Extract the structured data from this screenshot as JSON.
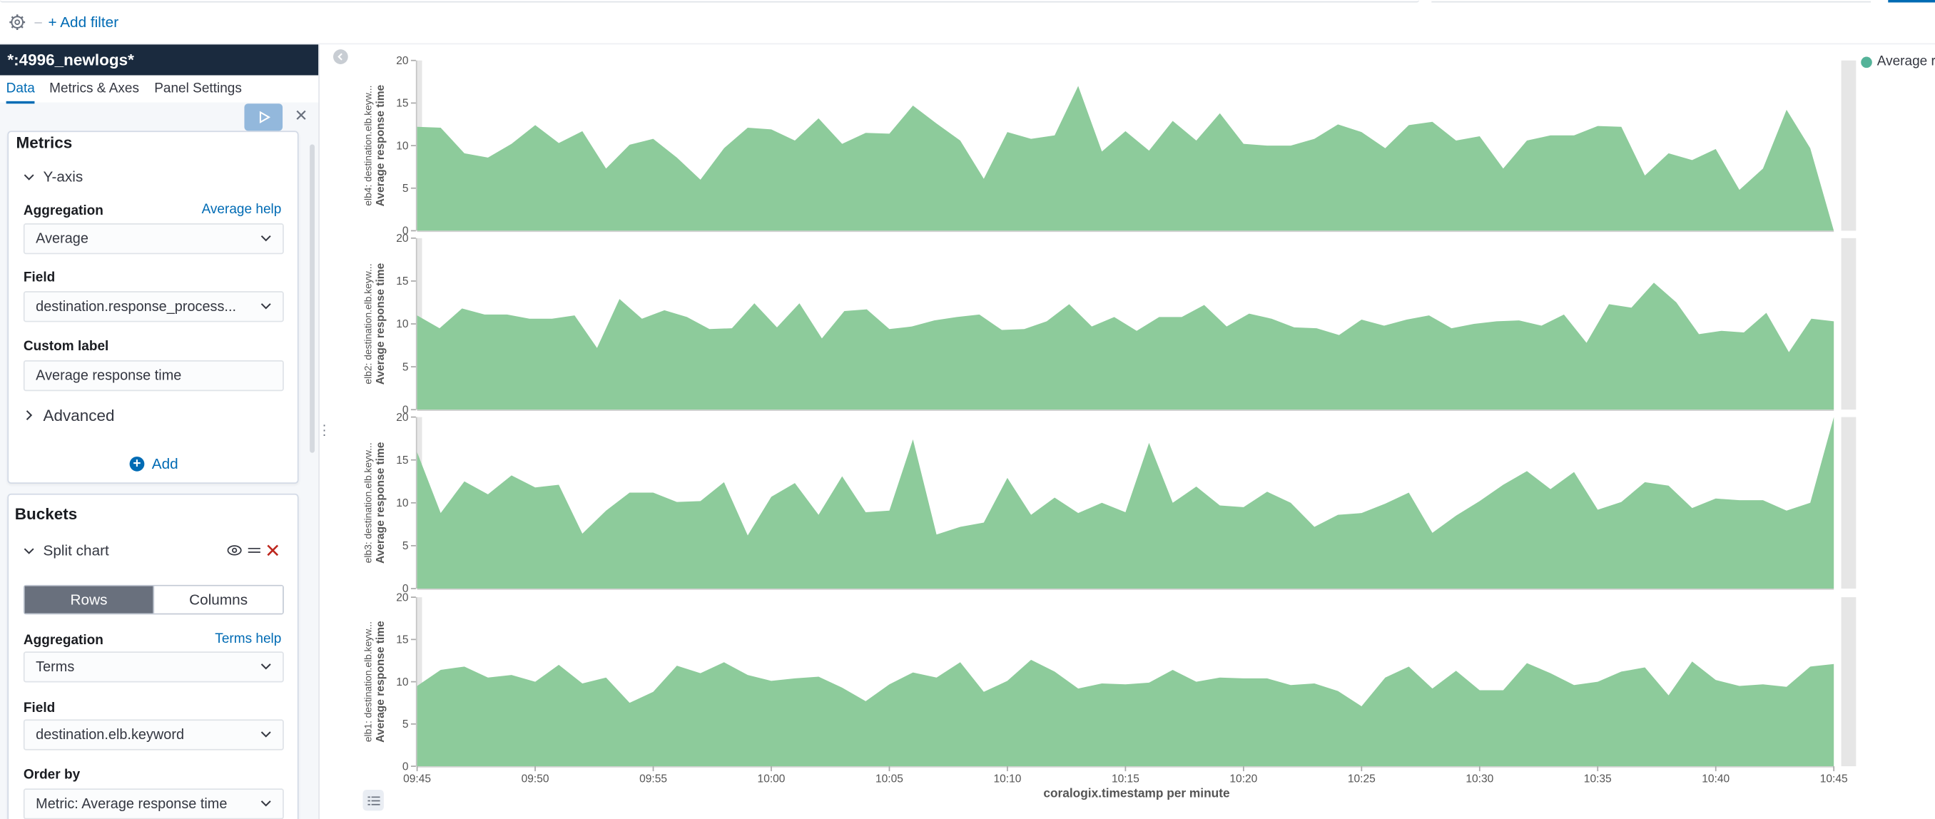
{
  "topbar": {
    "add_filter": "+ Add filter"
  },
  "sidebar": {
    "index_pattern": "*:4996_newlogs*",
    "tabs": [
      "Data",
      "Metrics & Axes",
      "Panel Settings"
    ],
    "metrics": {
      "title": "Metrics",
      "y_axis": "Y-axis",
      "aggregation_label": "Aggregation",
      "aggregation_help": "Average help",
      "aggregation_value": "Average",
      "field_label": "Field",
      "field_value": "destination.response_process...",
      "custom_label_label": "Custom label",
      "custom_label_value": "Average response time",
      "advanced": "Advanced",
      "add": "Add"
    },
    "buckets": {
      "title": "Buckets",
      "split_chart": "Split chart",
      "rows": "Rows",
      "columns": "Columns",
      "aggregation_label": "Aggregation",
      "aggregation_help": "Terms help",
      "aggregation_value": "Terms",
      "field_label": "Field",
      "field_value": "destination.elb.keyword",
      "order_by_label": "Order by",
      "order_by_value": "Metric: Average response time"
    }
  },
  "legend": {
    "label": "Average re"
  },
  "colors": {
    "series": "#8dcb9b",
    "accent": "#006bb4",
    "header": "#1a2a3e",
    "danger": "#bd271e"
  },
  "chart_data": {
    "type": "area",
    "xlabel": "coralogix.timestamp per minute",
    "x_ticks": [
      "09:45",
      "09:50",
      "09:55",
      "10:00",
      "10:05",
      "10:10",
      "10:15",
      "10:20",
      "10:25",
      "10:30",
      "10:35",
      "10:40",
      "10:45"
    ],
    "ylim": [
      0,
      20
    ],
    "y_ticks": [
      0,
      5,
      10,
      15,
      20
    ],
    "series_name": "Average response time",
    "panels": [
      {
        "split_label": "elb4: destination.elb.keyw...",
        "ylabel": "Average response time",
        "values": [
          12.2,
          12.1,
          9.1,
          8.6,
          10.2,
          12.4,
          10.3,
          11.7,
          7.3,
          10.1,
          10.8,
          8.6,
          6.0,
          9.7,
          12.1,
          11.9,
          10.6,
          13.2,
          10.2,
          11.5,
          11.4,
          14.7,
          12.6,
          10.6,
          6.1,
          11.6,
          10.8,
          11.2,
          17.0,
          9.3,
          11.7,
          9.4,
          12.9,
          10.6,
          13.8,
          10.2,
          10.0,
          10.0,
          10.8,
          12.5,
          11.6,
          9.7,
          12.4,
          12.8,
          10.6,
          11.1,
          7.3,
          10.6,
          11.2,
          11.2,
          12.3,
          12.2,
          6.5,
          9.1,
          8.3,
          9.6,
          4.8,
          7.3,
          14.2,
          9.7,
          0.0
        ]
      },
      {
        "split_label": "elb2: destination.elb.keyw...",
        "ylabel": "Average response time",
        "values": [
          11.0,
          9.5,
          11.8,
          11.1,
          11.1,
          10.6,
          10.6,
          11.0,
          7.2,
          12.9,
          10.6,
          11.6,
          10.8,
          9.4,
          9.5,
          12.4,
          9.6,
          12.4,
          8.3,
          11.5,
          11.7,
          9.4,
          9.7,
          10.4,
          10.8,
          11.1,
          9.3,
          9.4,
          10.3,
          12.3,
          9.7,
          10.8,
          9.2,
          10.8,
          10.8,
          12.2,
          9.7,
          11.2,
          10.6,
          9.6,
          9.5,
          8.7,
          10.5,
          9.8,
          10.5,
          11.0,
          9.5,
          10.0,
          10.3,
          10.4,
          9.8,
          11.1,
          7.8,
          12.3,
          11.9,
          14.8,
          12.5,
          8.8,
          9.2,
          9.0,
          11.3,
          6.7,
          10.6,
          10.3
        ]
      },
      {
        "split_label": "elb3: destination.elb.keyw...",
        "ylabel": "Average response time",
        "values": [
          15.9,
          8.8,
          12.5,
          11.0,
          13.2,
          11.8,
          12.1,
          6.4,
          9.1,
          11.2,
          11.2,
          10.1,
          10.2,
          12.4,
          6.2,
          10.7,
          12.3,
          8.6,
          13.1,
          8.9,
          9.1,
          17.4,
          6.3,
          7.2,
          7.7,
          12.9,
          8.6,
          10.6,
          8.8,
          10.0,
          8.9,
          17.0,
          10.0,
          11.9,
          9.7,
          9.5,
          11.3,
          10.0,
          7.2,
          8.6,
          8.8,
          9.9,
          11.2,
          6.5,
          8.5,
          10.2,
          12.1,
          13.7,
          11.6,
          13.6,
          9.2,
          10.1,
          12.4,
          12.0,
          9.4,
          10.5,
          10.3,
          10.3,
          9.1,
          10.0,
          20.0
        ]
      },
      {
        "split_label": "elb1: destination.elb.keyw...",
        "ylabel": "Average response time",
        "values": [
          9.5,
          11.4,
          11.8,
          10.5,
          10.8,
          10.0,
          12.0,
          9.8,
          10.5,
          7.5,
          8.8,
          11.9,
          11.0,
          12.3,
          10.8,
          10.1,
          10.4,
          10.6,
          9.3,
          7.7,
          9.7,
          11.1,
          10.5,
          12.3,
          8.8,
          10.1,
          12.6,
          11.2,
          9.2,
          9.8,
          9.7,
          9.9,
          11.4,
          10.0,
          10.5,
          10.4,
          10.4,
          9.6,
          9.8,
          8.9,
          7.1,
          10.5,
          11.8,
          9.2,
          11.3,
          9.0,
          9.0,
          12.2,
          11.0,
          9.6,
          10.0,
          11.2,
          11.7,
          8.4,
          12.4,
          10.2,
          9.5,
          9.7,
          9.4,
          11.8,
          12.1
        ]
      }
    ]
  }
}
